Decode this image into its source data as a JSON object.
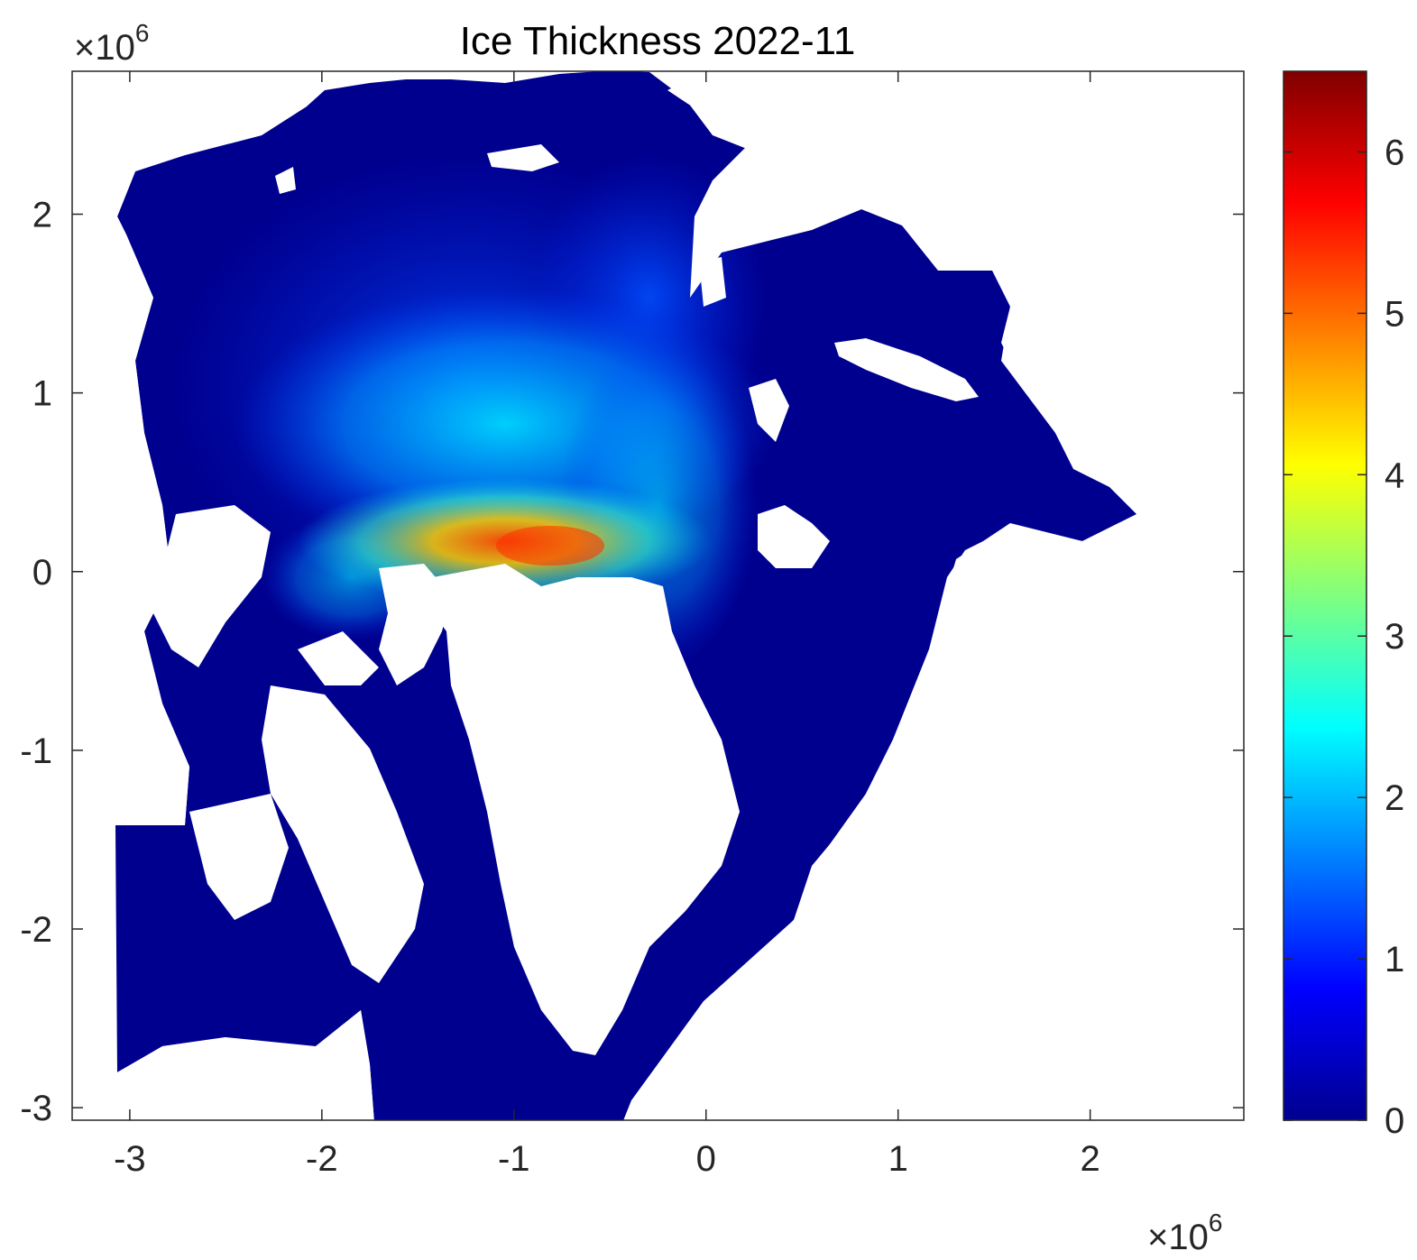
{
  "chart_data": {
    "type": "heatmap",
    "title": "Ice Thickness 2022-11",
    "xlabel": "",
    "ylabel": "",
    "x_ticks": [
      -3,
      -2,
      -1,
      0,
      1,
      2
    ],
    "y_ticks": [
      2,
      1,
      0,
      -1,
      -2,
      -3
    ],
    "x_tick_labels": [
      "-3",
      "-2",
      "-1",
      "0",
      "1",
      "2"
    ],
    "y_tick_labels": [
      "2",
      "1",
      "0",
      "-1",
      "-2",
      "-3"
    ],
    "x_exponent": {
      "base": "×10",
      "power": "6"
    },
    "y_exponent": {
      "base": "×10",
      "power": "6"
    },
    "xlim": [
      -3.3,
      2.8
    ],
    "ylim": [
      -3.07,
      2.8
    ],
    "grid": false,
    "colormap": "jet",
    "colorbar": {
      "range": [
        0,
        6.5
      ],
      "ticks": [
        0,
        1,
        2,
        3,
        4,
        5,
        6
      ],
      "tick_labels": [
        "0",
        "1",
        "2",
        "3",
        "4",
        "5",
        "6"
      ],
      "placement": "right"
    },
    "colors": {
      "open_water_low": "#00008f",
      "land_no_data": "#ffffff",
      "thick_ice": "#ff2000"
    }
  }
}
